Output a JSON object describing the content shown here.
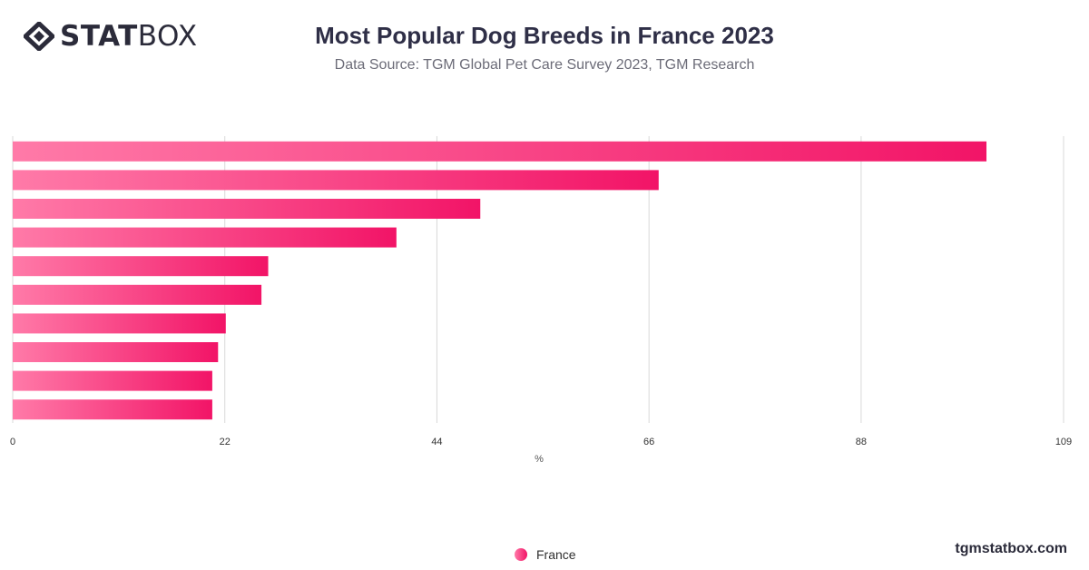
{
  "brand": {
    "logo_bold": "STAT",
    "logo_light": "BOX",
    "site": "tgmstatbox.com",
    "logo_icon": "diamond-logo-icon"
  },
  "header": {
    "title": "Most Popular Dog Breeds in France 2023",
    "subtitle": "Data Source: TGM Global Pet Care Survey 2023, TGM Research"
  },
  "colors": {
    "bar_start": "#ff7aa8",
    "bar_end": "#f21467",
    "grid": "#d9d9d9",
    "text": "#2f2f47"
  },
  "chart_data": {
    "type": "bar",
    "orientation": "horizontal",
    "categories": [
      "",
      "",
      "",
      "",
      "",
      "",
      "",
      "",
      "",
      ""
    ],
    "series": [
      {
        "name": "France",
        "values": [
          101,
          67,
          48.5,
          39.8,
          26.5,
          25.8,
          22.1,
          21.3,
          20.7,
          20.7
        ]
      }
    ],
    "xlabel": "%",
    "xlim": [
      0,
      109
    ],
    "xticks": [
      "0",
      "22",
      "44",
      "66",
      "88",
      "109"
    ],
    "grid": true,
    "legend": "bottom-center"
  }
}
